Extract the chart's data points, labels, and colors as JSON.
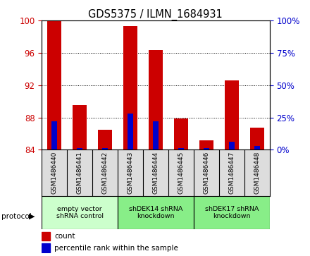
{
  "title": "GDS5375 / ILMN_1684931",
  "samples": [
    "GSM1486440",
    "GSM1486441",
    "GSM1486442",
    "GSM1486443",
    "GSM1486444",
    "GSM1486445",
    "GSM1486446",
    "GSM1486447",
    "GSM1486448"
  ],
  "red_values": [
    100.0,
    89.5,
    86.5,
    99.3,
    96.3,
    87.9,
    85.2,
    92.6,
    86.7
  ],
  "blue_values": [
    87.5,
    84.2,
    84.2,
    88.5,
    87.5,
    84.2,
    84.2,
    85.0,
    84.5
  ],
  "ymin": 84,
  "ymax": 100,
  "yticks_left": [
    84,
    88,
    92,
    96,
    100
  ],
  "yticks_right": [
    0,
    25,
    50,
    75,
    100
  ],
  "left_color": "#cc0000",
  "right_color": "#0000cc",
  "bar_width": 0.55,
  "blue_bar_width": 0.22,
  "groups": [
    {
      "label": "empty vector\nshRNA control",
      "start": 0,
      "end": 3,
      "color": "#ccffcc"
    },
    {
      "label": "shDEK14 shRNA\nknockdown",
      "start": 3,
      "end": 6,
      "color": "#88ee88"
    },
    {
      "label": "shDEK17 shRNA\nknockdown",
      "start": 6,
      "end": 9,
      "color": "#88ee88"
    }
  ],
  "protocol_label": "protocol",
  "legend_count": "count",
  "legend_percentile": "percentile rank within the sample",
  "bg_color": "#ffffff",
  "label_bg": "#dddddd"
}
